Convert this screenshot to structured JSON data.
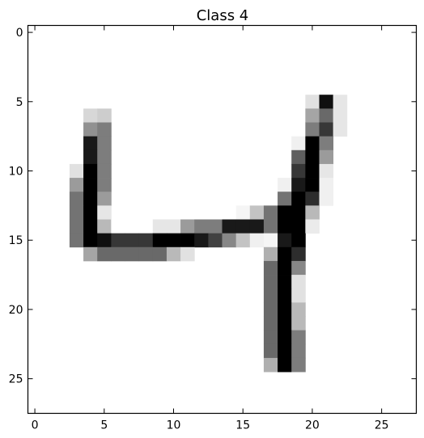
{
  "chart_data": {
    "type": "heatmap",
    "title": "Class 4",
    "xlabel": "",
    "ylabel": "",
    "colormap": "gray_r",
    "value_range": [
      0,
      255
    ],
    "shape": [
      28,
      28
    ],
    "xlim": [
      -0.5,
      27.5
    ],
    "ylim": [
      27.5,
      -0.5
    ],
    "x_ticks": [
      0,
      5,
      10,
      15,
      20,
      25
    ],
    "y_ticks": [
      0,
      5,
      10,
      15,
      20,
      25
    ],
    "x_tick_labels": [
      "0",
      "5",
      "10",
      "15",
      "20",
      "25"
    ],
    "y_tick_labels": [
      "0",
      "5",
      "10",
      "15",
      "20",
      "25"
    ],
    "grid": false,
    "legend": "none",
    "pixels": [
      [
        5,
        20,
        30
      ],
      [
        5,
        21,
        240
      ],
      [
        5,
        22,
        25
      ],
      [
        6,
        4,
        40
      ],
      [
        6,
        5,
        50
      ],
      [
        6,
        20,
        90
      ],
      [
        6,
        21,
        150
      ],
      [
        6,
        22,
        25
      ],
      [
        7,
        4,
        110
      ],
      [
        7,
        5,
        130
      ],
      [
        7,
        20,
        130
      ],
      [
        7,
        21,
        200
      ],
      [
        7,
        22,
        25
      ],
      [
        8,
        4,
        230
      ],
      [
        8,
        5,
        130
      ],
      [
        8,
        19,
        15
      ],
      [
        8,
        20,
        255
      ],
      [
        8,
        21,
        130
      ],
      [
        9,
        4,
        230
      ],
      [
        9,
        5,
        130
      ],
      [
        9,
        19,
        160
      ],
      [
        9,
        20,
        255
      ],
      [
        9,
        21,
        100
      ],
      [
        10,
        3,
        30
      ],
      [
        10,
        4,
        255
      ],
      [
        10,
        5,
        130
      ],
      [
        10,
        19,
        200
      ],
      [
        10,
        20,
        255
      ],
      [
        10,
        21,
        25
      ],
      [
        11,
        3,
        100
      ],
      [
        11,
        4,
        255
      ],
      [
        11,
        5,
        130
      ],
      [
        11,
        18,
        15
      ],
      [
        11,
        19,
        230
      ],
      [
        11,
        20,
        255
      ],
      [
        11,
        21,
        15
      ],
      [
        12,
        3,
        140
      ],
      [
        12,
        4,
        255
      ],
      [
        12,
        5,
        100
      ],
      [
        12,
        18,
        140
      ],
      [
        12,
        19,
        255
      ],
      [
        12,
        20,
        210
      ],
      [
        12,
        21,
        15
      ],
      [
        13,
        3,
        140
      ],
      [
        13,
        4,
        255
      ],
      [
        13,
        5,
        25
      ],
      [
        13,
        15,
        10
      ],
      [
        13,
        16,
        60
      ],
      [
        13,
        17,
        140
      ],
      [
        13,
        18,
        255
      ],
      [
        13,
        19,
        255
      ],
      [
        13,
        20,
        70
      ],
      [
        14,
        3,
        140
      ],
      [
        14,
        4,
        255
      ],
      [
        14,
        5,
        70
      ],
      [
        14,
        6,
        0
      ],
      [
        14,
        7,
        0
      ],
      [
        14,
        8,
        0
      ],
      [
        14,
        9,
        25
      ],
      [
        14,
        10,
        25
      ],
      [
        14,
        11,
        100
      ],
      [
        14,
        12,
        130
      ],
      [
        14,
        13,
        130
      ],
      [
        14,
        14,
        230
      ],
      [
        14,
        15,
        230
      ],
      [
        14,
        16,
        230
      ],
      [
        14,
        17,
        140
      ],
      [
        14,
        18,
        255
      ],
      [
        14,
        19,
        255
      ],
      [
        14,
        20,
        20
      ],
      [
        15,
        3,
        140
      ],
      [
        15,
        4,
        255
      ],
      [
        15,
        5,
        240
      ],
      [
        15,
        6,
        200
      ],
      [
        15,
        7,
        200
      ],
      [
        15,
        8,
        200
      ],
      [
        15,
        9,
        255
      ],
      [
        15,
        10,
        255
      ],
      [
        15,
        11,
        255
      ],
      [
        15,
        12,
        230
      ],
      [
        15,
        13,
        190
      ],
      [
        15,
        14,
        120
      ],
      [
        15,
        15,
        60
      ],
      [
        15,
        16,
        15
      ],
      [
        15,
        17,
        10
      ],
      [
        15,
        18,
        230
      ],
      [
        15,
        19,
        255
      ],
      [
        16,
        4,
        90
      ],
      [
        16,
        5,
        150
      ],
      [
        16,
        6,
        150
      ],
      [
        16,
        7,
        150
      ],
      [
        16,
        8,
        150
      ],
      [
        16,
        9,
        150
      ],
      [
        16,
        10,
        70
      ],
      [
        16,
        11,
        30
      ],
      [
        16,
        17,
        80
      ],
      [
        16,
        18,
        255
      ],
      [
        16,
        19,
        210
      ],
      [
        17,
        17,
        150
      ],
      [
        17,
        18,
        255
      ],
      [
        17,
        19,
        120
      ],
      [
        18,
        17,
        150
      ],
      [
        18,
        18,
        255
      ],
      [
        18,
        19,
        30
      ],
      [
        19,
        17,
        150
      ],
      [
        19,
        18,
        255
      ],
      [
        19,
        19,
        30
      ],
      [
        20,
        17,
        150
      ],
      [
        20,
        18,
        255
      ],
      [
        20,
        19,
        70
      ],
      [
        21,
        17,
        150
      ],
      [
        21,
        18,
        255
      ],
      [
        21,
        19,
        70
      ],
      [
        22,
        17,
        150
      ],
      [
        22,
        18,
        255
      ],
      [
        22,
        19,
        130
      ],
      [
        23,
        17,
        150
      ],
      [
        23,
        18,
        255
      ],
      [
        23,
        19,
        130
      ],
      [
        24,
        17,
        80
      ],
      [
        24,
        18,
        255
      ],
      [
        24,
        19,
        130
      ]
    ]
  }
}
